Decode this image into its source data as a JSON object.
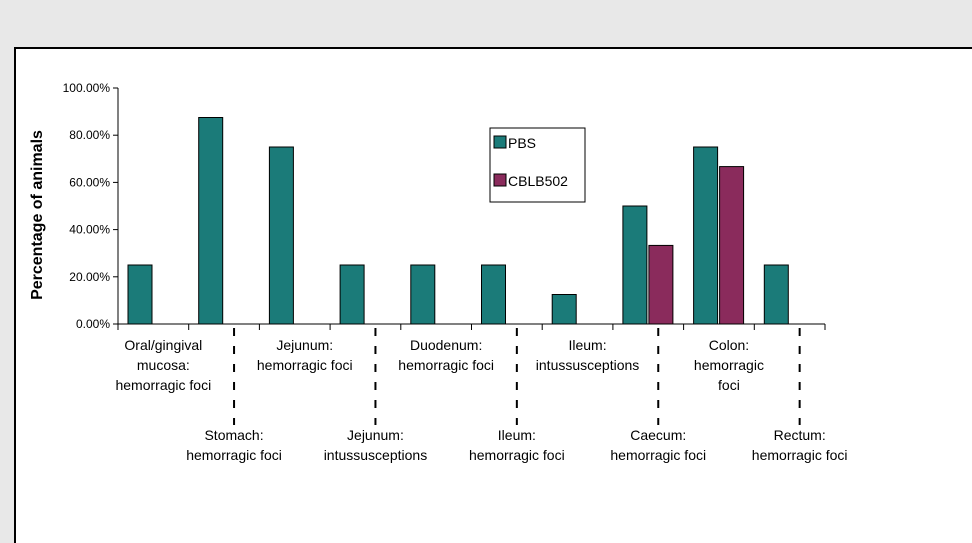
{
  "chart_data": {
    "type": "bar",
    "ylabel": "Percentage of animals",
    "categories": [
      "Oral/gingival\nmucosa:\nhemorragic foci",
      "Stomach:\nhemorragic foci",
      "Jejunum:\nhemorragic foci",
      "Jejunum:\nintussusceptions",
      "Duodenum:\nhemorragic foci",
      "Ileum:\nhemorragic foci",
      "Ileum:\nintussusceptions",
      "Caecum:\nhemorragic foci",
      "Colon:\nhemorragic\nfoci",
      "Rectum:\nhemorragic foci"
    ],
    "series": [
      {
        "name": "PBS",
        "color": "#1b7b79",
        "values": [
          25,
          87.5,
          75,
          25,
          25,
          25,
          12.5,
          50,
          75,
          25
        ]
      },
      {
        "name": "CBLB502",
        "color": "#8a2b5c",
        "values": [
          0,
          0,
          0,
          0,
          0,
          0,
          0,
          33.3,
          66.7,
          0
        ]
      }
    ],
    "ylim": [
      0,
      100
    ],
    "yticks": [
      {
        "value": 0,
        "label": "0.00%"
      },
      {
        "value": 20,
        "label": "20.00%"
      },
      {
        "value": 40,
        "label": "40.00%"
      },
      {
        "value": 60,
        "label": "60.00%"
      },
      {
        "value": 80,
        "label": "80.00%"
      },
      {
        "value": 100,
        "label": "100.00%"
      }
    ],
    "legend": "upper-center"
  }
}
